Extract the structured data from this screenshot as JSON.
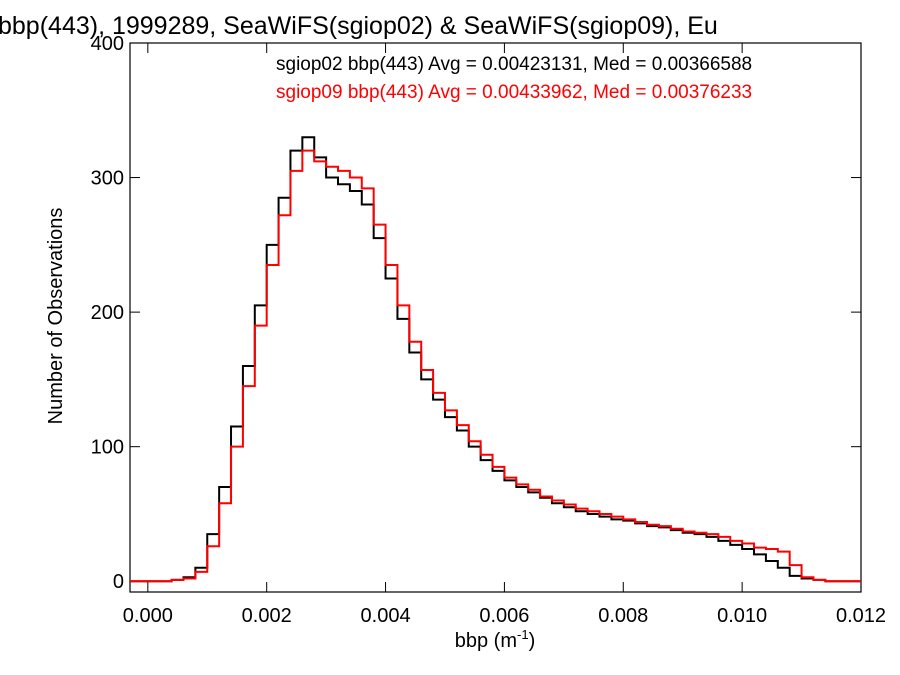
{
  "chart_data": {
    "type": "histogram",
    "title": "bbp(443), 1999289, SeaWiFS(sgiop02) & SeaWiFS(sgiop09), Eu",
    "xlabel_text": "bbp (m",
    "xlabel_sup": "-1",
    "xlabel_close": ")",
    "ylabel": "Number of Observations",
    "xlim": [
      -0.0003,
      0.012
    ],
    "ylim": [
      -8,
      400
    ],
    "x_ticks": [
      "0.000",
      "0.002",
      "0.004",
      "0.006",
      "0.008",
      "0.010",
      "0.012"
    ],
    "x_tick_values": [
      0.0,
      0.002,
      0.004,
      0.006,
      0.008,
      0.01,
      0.012
    ],
    "y_ticks": [
      "0",
      "100",
      "200",
      "300",
      "400"
    ],
    "y_tick_values": [
      0,
      100,
      200,
      300,
      400
    ],
    "grid": false,
    "legend_placement": "top-right",
    "series": [
      {
        "name": "sgiop02",
        "legend": "sgiop02 bbp(443) Avg = 0.00423131, Med = 0.00366588",
        "color": "#000000",
        "x": [
          -0.0003,
          0.0,
          0.0002,
          0.0004,
          0.0006,
          0.0008,
          0.001,
          0.0012,
          0.0014,
          0.0016,
          0.0018,
          0.002,
          0.0022,
          0.0024,
          0.0026,
          0.0028,
          0.003,
          0.0032,
          0.0034,
          0.0036,
          0.0038,
          0.004,
          0.0042,
          0.0044,
          0.0046,
          0.0048,
          0.005,
          0.0052,
          0.0054,
          0.0056,
          0.0058,
          0.006,
          0.0062,
          0.0064,
          0.0066,
          0.0068,
          0.007,
          0.0072,
          0.0074,
          0.0076,
          0.0078,
          0.008,
          0.0082,
          0.0084,
          0.0086,
          0.0088,
          0.009,
          0.0092,
          0.0094,
          0.0096,
          0.0098,
          0.01,
          0.0102,
          0.0104,
          0.0106,
          0.0108,
          0.011,
          0.0112,
          0.0114,
          0.0116,
          0.012
        ],
        "values": [
          0,
          0,
          0,
          1,
          3,
          10,
          35,
          70,
          115,
          160,
          205,
          250,
          285,
          320,
          330,
          315,
          300,
          295,
          290,
          280,
          255,
          225,
          195,
          170,
          150,
          135,
          122,
          112,
          100,
          90,
          82,
          75,
          70,
          66,
          62,
          58,
          55,
          52,
          50,
          48,
          46,
          45,
          43,
          41,
          40,
          38,
          36,
          35,
          33,
          30,
          27,
          24,
          20,
          15,
          10,
          4,
          2,
          1,
          0,
          0,
          0
        ]
      },
      {
        "name": "sgiop09",
        "legend": "sgiop09 bbp(443) Avg = 0.00433962, Med = 0.00376233",
        "color": "#ff0000",
        "x": [
          -0.0003,
          0.0,
          0.0002,
          0.0004,
          0.0006,
          0.0008,
          0.001,
          0.0012,
          0.0014,
          0.0016,
          0.0018,
          0.002,
          0.0022,
          0.0024,
          0.0026,
          0.0028,
          0.003,
          0.0032,
          0.0034,
          0.0036,
          0.0038,
          0.004,
          0.0042,
          0.0044,
          0.0046,
          0.0048,
          0.005,
          0.0052,
          0.0054,
          0.0056,
          0.0058,
          0.006,
          0.0062,
          0.0064,
          0.0066,
          0.0068,
          0.007,
          0.0072,
          0.0074,
          0.0076,
          0.0078,
          0.008,
          0.0082,
          0.0084,
          0.0086,
          0.0088,
          0.009,
          0.0092,
          0.0094,
          0.0096,
          0.0098,
          0.01,
          0.0102,
          0.0104,
          0.0106,
          0.0108,
          0.011,
          0.0112,
          0.0114,
          0.0116,
          0.012
        ],
        "values": [
          0,
          0,
          0,
          1,
          2,
          7,
          26,
          58,
          100,
          145,
          190,
          235,
          272,
          305,
          320,
          312,
          308,
          305,
          300,
          292,
          265,
          235,
          205,
          178,
          157,
          140,
          127,
          116,
          104,
          94,
          85,
          77,
          72,
          68,
          63,
          60,
          57,
          54,
          52,
          50,
          48,
          46,
          44,
          42,
          41,
          39,
          37,
          36,
          35,
          33,
          30,
          28,
          25,
          24,
          22,
          12,
          3,
          1,
          0,
          0,
          0
        ]
      }
    ]
  }
}
